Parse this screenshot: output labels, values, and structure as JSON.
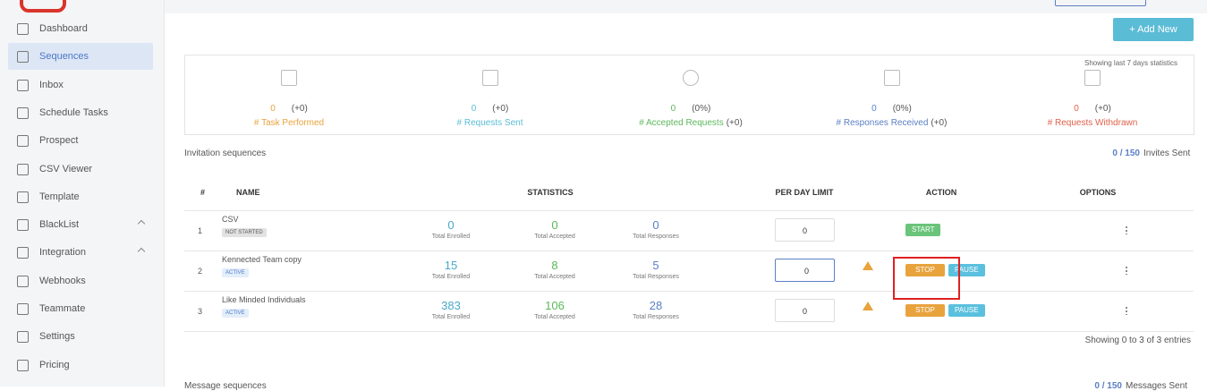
{
  "sidebar": {
    "items": [
      "Dashboard",
      "Sequences",
      "Inbox",
      "Schedule Tasks",
      "Prospect",
      "CSV Viewer",
      "Template",
      "BlackList",
      "Integration",
      "Webhooks",
      "Teammate",
      "Settings",
      "Pricing"
    ],
    "active": 1
  },
  "header": {
    "add_button": "+ Add New"
  },
  "stats": {
    "note": "Showing last 7 days statistics",
    "items": [
      {
        "value": "0",
        "change": "(+0)",
        "label": "# Task Performed",
        "color": "#e8a33d"
      },
      {
        "value": "0",
        "change": "(+0)",
        "label": "# Requests Sent",
        "color": "#5bbcd6"
      },
      {
        "value": "0",
        "change": "(0%)",
        "label": "# Accepted Requests",
        "extra": "(+0)",
        "color": "#5cb85c"
      },
      {
        "value": "0",
        "change": "(0%)",
        "label": "# Responses Received",
        "extra": "(+0)",
        "color": "#5b7fc4"
      },
      {
        "value": "0",
        "change": "(+0)",
        "label": "# Requests Withdrawn",
        "color": "#e0604a"
      }
    ]
  },
  "invitations": {
    "title": "Invitation sequences",
    "count": "0 / 150",
    "count_suffix": "Invites Sent"
  },
  "table": {
    "headers": [
      "#",
      "NAME",
      "STATISTICS",
      "PER DAY LIMIT",
      "ACTION",
      "OPTIONS"
    ],
    "stat_labels": [
      "Total Enrolled",
      "Total Accepted",
      "Total Responses"
    ],
    "rows": [
      {
        "index": "1",
        "name": "CSV",
        "status": "NOT STARTED",
        "enrolled": "0",
        "accepted": "0",
        "responses": "0",
        "limit": "0",
        "actions": [
          "START"
        ]
      },
      {
        "index": "2",
        "name": "Kennected Team copy",
        "status": "ACTIVE",
        "enrolled": "15",
        "accepted": "8",
        "responses": "5",
        "limit": "0",
        "actions": [
          "STOP",
          "PAUSE"
        ]
      },
      {
        "index": "3",
        "name": "Like Minded Individuals",
        "status": "ACTIVE",
        "enrolled": "383",
        "accepted": "106",
        "responses": "28",
        "limit": "0",
        "actions": [
          "STOP",
          "PAUSE"
        ]
      }
    ],
    "footer": "Showing 0 to 3 of 3 entries"
  },
  "messages": {
    "title": "Message sequences",
    "count": "0 / 150",
    "count_suffix": "Messages Sent"
  }
}
